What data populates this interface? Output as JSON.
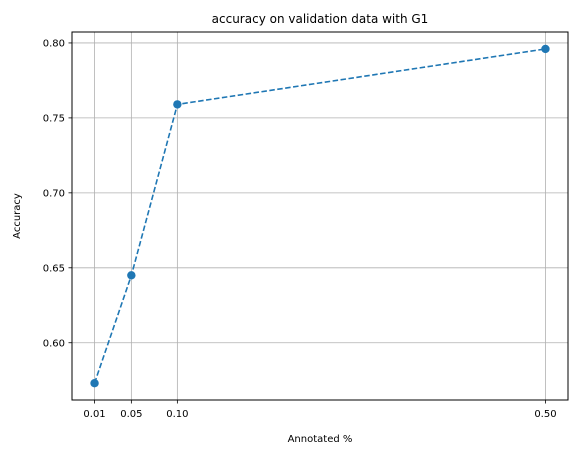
{
  "chart_data": {
    "type": "line",
    "title": "accuracy on validation data with G1",
    "xlabel": "Annotated %",
    "ylabel": "Accuracy",
    "x": [
      0.01,
      0.05,
      0.1,
      0.5
    ],
    "series": [
      {
        "values": [
          0.573,
          0.645,
          0.759,
          0.796
        ]
      }
    ],
    "xticks": [
      0.01,
      0.05,
      0.1,
      0.5
    ],
    "xtick_labels": [
      "0.01",
      "0.05",
      "0.10",
      "0.50"
    ],
    "yticks": [
      0.6,
      0.65,
      0.7,
      0.75,
      0.8
    ],
    "ytick_labels": [
      "0.60",
      "0.65",
      "0.70",
      "0.75",
      "0.80"
    ],
    "xlim": [
      -0.0145,
      0.5245
    ],
    "ylim": [
      0.5618,
      0.8073
    ],
    "grid": true,
    "line_style": "dashed",
    "marker": "circle",
    "color": "#1f77b4"
  }
}
